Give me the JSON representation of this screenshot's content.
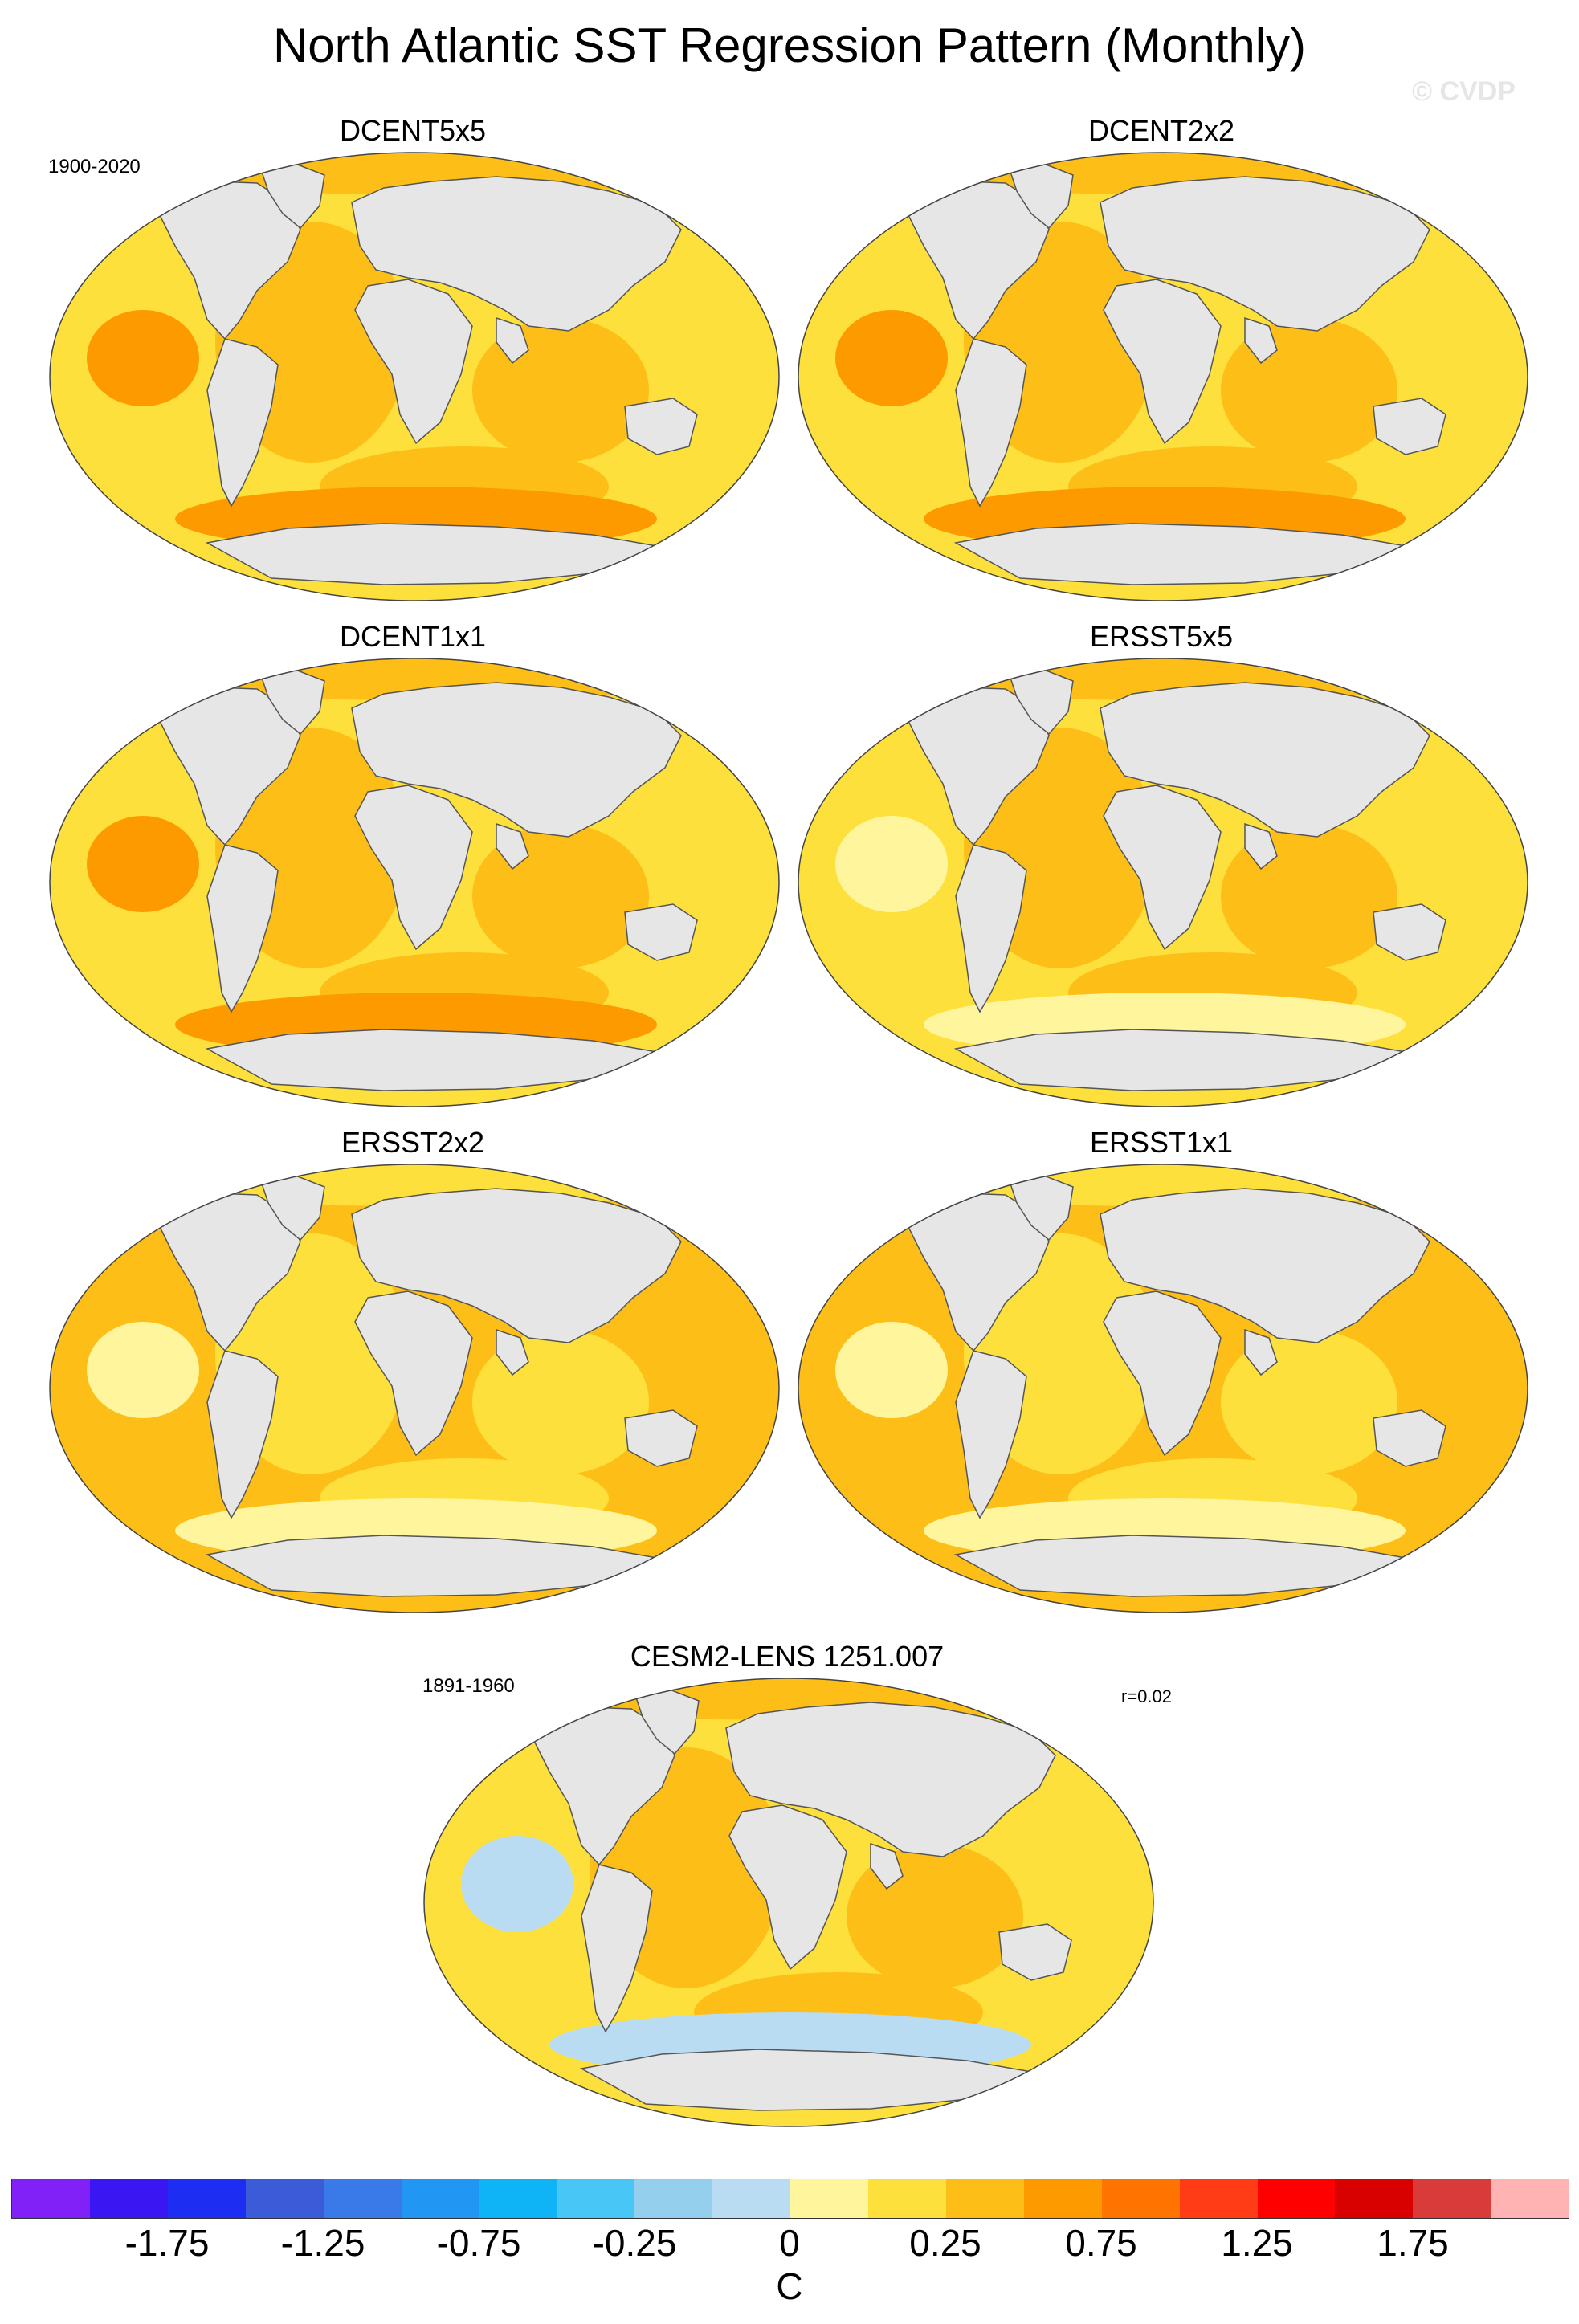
{
  "figure": {
    "title": "North Atlantic SST Regression Pattern (Monthly)",
    "watermark": "© CVDP",
    "units": "C"
  },
  "panels": [
    {
      "title": "DCENT5x5",
      "period": "1900-2020",
      "correlation": "",
      "palette": [
        "#fde03c",
        "#fdbf17",
        "#fd9a00"
      ]
    },
    {
      "title": "DCENT2x2",
      "period": "",
      "correlation": "",
      "palette": [
        "#fde03c",
        "#fdbf17",
        "#fd9a00"
      ]
    },
    {
      "title": "DCENT1x1",
      "period": "",
      "correlation": "",
      "palette": [
        "#fde03c",
        "#fdbf17",
        "#fd9a00"
      ]
    },
    {
      "title": "ERSST5x5",
      "period": "",
      "correlation": "",
      "palette": [
        "#fde03c",
        "#fdbf17",
        "#fff59d"
      ]
    },
    {
      "title": "ERSST2x2",
      "period": "",
      "correlation": "",
      "palette": [
        "#fdbf17",
        "#fde03c",
        "#fff59d"
      ]
    },
    {
      "title": "ERSST1x1",
      "period": "",
      "correlation": "",
      "palette": [
        "#fdbf17",
        "#fde03c",
        "#fff59d"
      ]
    },
    {
      "title": "CESM2-LENS 1251.007",
      "period": "1891-1960",
      "correlation": "r=0.02",
      "palette": [
        "#fde03c",
        "#fdbf17",
        "#b9dcf3"
      ]
    }
  ],
  "colorbar": {
    "colors": [
      "#8121f7",
      "#3a16f2",
      "#1d2ef2",
      "#3b5bd9",
      "#3a7ae8",
      "#2196f3",
      "#0fb4f6",
      "#48c6f5",
      "#94d0ed",
      "#b9dcf3",
      "#fff59d",
      "#fde03c",
      "#fdbf17",
      "#fd9a00",
      "#ff7400",
      "#ff3c16",
      "#ff0000",
      "#d90000",
      "#d93a3a",
      "#ffb3b3"
    ],
    "tick_labels": [
      "-1.75",
      "-1.25",
      "-0.75",
      "-0.25",
      "0",
      "0.25",
      "0.75",
      "1.25",
      "1.75"
    ]
  }
}
